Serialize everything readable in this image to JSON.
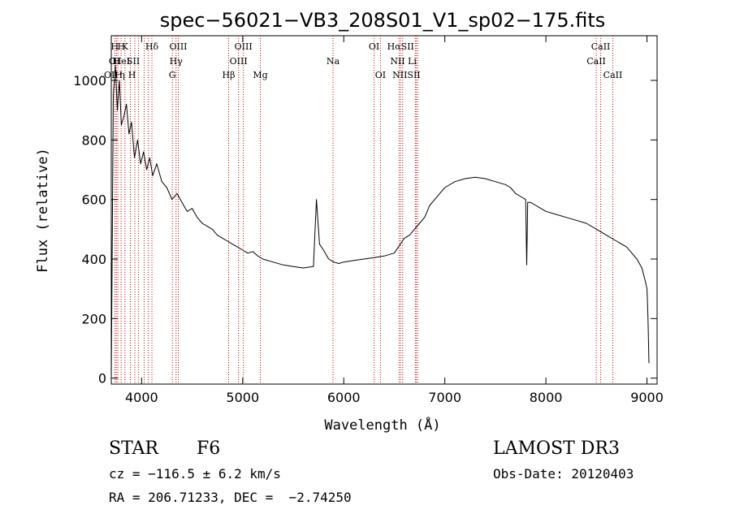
{
  "chart_data": {
    "type": "line",
    "title": "spec−56021−VB3_208S01_V1_sp02−175.fits",
    "xlabel": "Wavelength (Å)",
    "ylabel": "Flux (relative)",
    "xlim": [
      3700,
      9100
    ],
    "ylim": [
      -20,
      1150
    ],
    "x_ticks": [
      4000,
      5000,
      6000,
      7000,
      8000,
      9000
    ],
    "y_ticks": [
      0,
      200,
      400,
      600,
      800,
      1000
    ],
    "line_color": "#000000",
    "marker_color": "#cc0000",
    "series": [
      {
        "name": "flux",
        "x": [
          3700,
          3720,
          3740,
          3760,
          3780,
          3800,
          3825,
          3850,
          3875,
          3900,
          3930,
          3960,
          3990,
          4020,
          4050,
          4080,
          4110,
          4150,
          4200,
          4250,
          4300,
          4350,
          4400,
          4450,
          4500,
          4550,
          4600,
          4650,
          4700,
          4750,
          4800,
          4850,
          4900,
          4950,
          5000,
          5050,
          5100,
          5150,
          5200,
          5300,
          5400,
          5500,
          5600,
          5700,
          5730,
          5760,
          5800,
          5850,
          5900,
          5950,
          6000,
          6100,
          6200,
          6300,
          6400,
          6500,
          6560,
          6600,
          6650,
          6700,
          6750,
          6800,
          6850,
          6900,
          6950,
          7000,
          7100,
          7200,
          7300,
          7400,
          7500,
          7600,
          7650,
          7700,
          7750,
          7800,
          7810,
          7820,
          7850,
          7900,
          8000,
          8100,
          8200,
          8300,
          8400,
          8500,
          8600,
          8700,
          8800,
          8850,
          8900,
          8950,
          8980,
          9000,
          9010,
          9020
        ],
        "values": [
          0,
          950,
          1050,
          900,
          1000,
          850,
          880,
          920,
          820,
          860,
          740,
          800,
          720,
          760,
          700,
          740,
          680,
          720,
          660,
          640,
          600,
          620,
          590,
          560,
          570,
          540,
          520,
          510,
          500,
          480,
          470,
          460,
          450,
          440,
          430,
          420,
          425,
          410,
          400,
          390,
          380,
          375,
          370,
          375,
          600,
          450,
          430,
          400,
          390,
          385,
          390,
          395,
          400,
          405,
          410,
          420,
          450,
          470,
          480,
          500,
          520,
          540,
          580,
          600,
          620,
          640,
          660,
          670,
          675,
          670,
          660,
          650,
          640,
          620,
          610,
          600,
          380,
          590,
          590,
          580,
          560,
          550,
          540,
          530,
          520,
          500,
          480,
          460,
          440,
          420,
          400,
          370,
          330,
          300,
          200,
          50
        ]
      }
    ],
    "line_markers": [
      {
        "w": 3735,
        "tier": 1,
        "label": "H"
      },
      {
        "w": 3750,
        "tier": 1,
        "label": "O"
      },
      {
        "w": 3765,
        "tier": 1,
        "label": "O"
      },
      {
        "w": 3798,
        "tier": 1,
        "label": "H"
      },
      {
        "w": 3835,
        "tier": 1,
        "label": "H"
      },
      {
        "w": 3889,
        "tier": 1,
        "label": "H"
      },
      {
        "w": 3933,
        "tier": 1,
        "label": "K"
      },
      {
        "w": 3968,
        "tier": 1,
        "label": "H"
      },
      {
        "w": 4026,
        "tier": 1,
        "label": "HeI"
      },
      {
        "w": 4068,
        "tier": 1,
        "label": "SII"
      },
      {
        "w": 4102,
        "tier": 1,
        "label": "Hδ"
      },
      {
        "w": 4304,
        "tier": 1,
        "label": "G"
      },
      {
        "w": 4341,
        "tier": 1,
        "label": "Hγ"
      },
      {
        "w": 4363,
        "tier": 1,
        "label": "OIII"
      },
      {
        "w": 4861,
        "tier": 1,
        "label": "Hβ"
      },
      {
        "w": 4959,
        "tier": 1,
        "label": "OIII"
      },
      {
        "w": 5007,
        "tier": 1,
        "label": "OIII"
      },
      {
        "w": 5175,
        "tier": 1,
        "label": "Mg"
      },
      {
        "w": 5894,
        "tier": 1,
        "label": "Na"
      },
      {
        "w": 6300,
        "tier": 1,
        "label": "OI"
      },
      {
        "w": 6363,
        "tier": 1,
        "label": "OI"
      },
      {
        "w": 6548,
        "tier": 1,
        "label": "NII"
      },
      {
        "w": 6563,
        "tier": 1,
        "label": "Hα"
      },
      {
        "w": 6583,
        "tier": 1,
        "label": "NII"
      },
      {
        "w": 6708,
        "tier": 1,
        "label": "Li"
      },
      {
        "w": 6716,
        "tier": 1,
        "label": "SII"
      },
      {
        "w": 6731,
        "tier": 1,
        "label": "SII"
      },
      {
        "w": 8498,
        "tier": 1,
        "label": "CaII"
      },
      {
        "w": 8542,
        "tier": 1,
        "label": "CaII"
      },
      {
        "w": 8662,
        "tier": 1,
        "label": "CaII"
      }
    ],
    "line_labels": [
      {
        "w": 3735,
        "row": 1,
        "text": "H"
      },
      {
        "w": 3800,
        "row": 1,
        "text": "H"
      },
      {
        "w": 3835,
        "row": 1,
        "text": "K"
      },
      {
        "w": 4102,
        "row": 1,
        "text": "Hδ"
      },
      {
        "w": 3710,
        "row": 2,
        "text": "O"
      },
      {
        "w": 3750,
        "row": 2,
        "text": "H"
      },
      {
        "w": 3805,
        "row": 2,
        "text": "HeI"
      },
      {
        "w": 3918,
        "row": 2,
        "text": "SII"
      },
      {
        "w": 3720,
        "row": 3,
        "text": "OIH"
      },
      {
        "w": 3808,
        "row": 3,
        "text": "η"
      },
      {
        "w": 3905,
        "row": 3,
        "text": "H"
      },
      {
        "w": 4363,
        "row": 1,
        "text": "OIII"
      },
      {
        "w": 4341,
        "row": 2,
        "text": "Hγ"
      },
      {
        "w": 4304,
        "row": 3,
        "text": "G"
      },
      {
        "w": 5007,
        "row": 1,
        "text": "OIII"
      },
      {
        "w": 4959,
        "row": 2,
        "text": "OIII"
      },
      {
        "w": 4861,
        "row": 3,
        "text": "Hβ"
      },
      {
        "w": 5175,
        "row": 3,
        "text": "Mg"
      },
      {
        "w": 5894,
        "row": 2,
        "text": "Na"
      },
      {
        "w": 6300,
        "row": 1,
        "text": "OI"
      },
      {
        "w": 6363,
        "row": 3,
        "text": "OI"
      },
      {
        "w": 6563,
        "row": 1,
        "text": "HαSII"
      },
      {
        "w": 6590,
        "row": 2,
        "text": "NII Li"
      },
      {
        "w": 6620,
        "row": 3,
        "text": "NIISII"
      },
      {
        "w": 8542,
        "row": 1,
        "text": "CaII"
      },
      {
        "w": 8498,
        "row": 2,
        "text": "CaII"
      },
      {
        "w": 8662,
        "row": 3,
        "text": "CaII"
      }
    ]
  },
  "info": {
    "class_label": "STAR",
    "subclass": "F6",
    "survey": "LAMOST DR3",
    "cz": "cz = −116.5 ± 6.2 km/s",
    "obs_date": "Obs-Date: 20120403",
    "coords": "RA = 206.71233, DEC =  −2.74250"
  }
}
